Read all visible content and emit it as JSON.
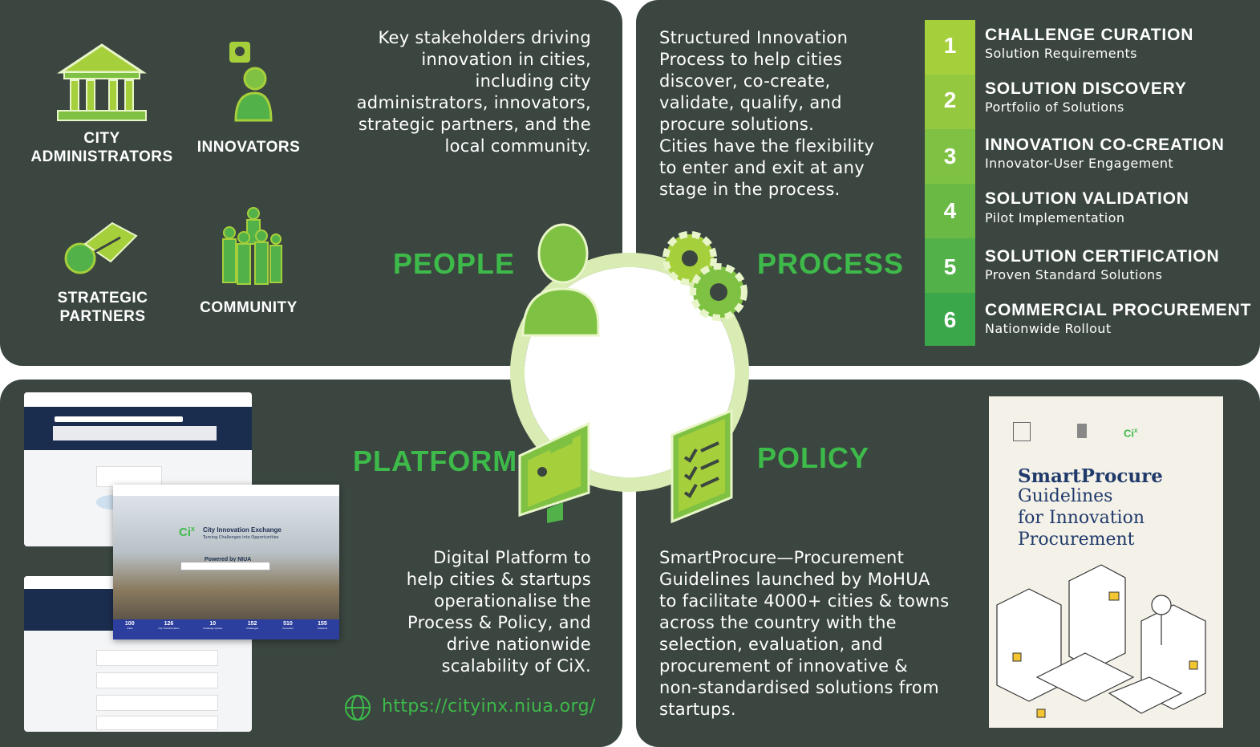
{
  "people": {
    "pillar": "PEOPLE",
    "description": [
      "Key stakeholders driving",
      "innovation in cities,",
      "including city",
      "administrators, innovators,",
      "strategic partners, and the",
      "local community."
    ],
    "stakeholders": [
      {
        "label1": "CITY",
        "label2": "ADMINISTRATORS",
        "icon": "government-building-icon"
      },
      {
        "label1": "INNOVATORS",
        "label2": "",
        "icon": "innovator-icon"
      },
      {
        "label1": "STRATEGIC",
        "label2": "PARTNERS",
        "icon": "handshake-icon"
      },
      {
        "label1": "COMMUNITY",
        "label2": "",
        "icon": "community-icon"
      }
    ]
  },
  "process": {
    "pillar": "PROCESS",
    "description": [
      "Structured Innovation",
      "Process to help cities",
      "discover, co-create,",
      "validate, qualify, and",
      "procure solutions.",
      "Cities have the flexibility",
      "to enter and exit at any",
      "stage in the process."
    ],
    "steps": [
      {
        "num": "1",
        "title": "CHALLENGE CURATION",
        "sub": "Solution Requirements",
        "color": "#a6cf3c"
      },
      {
        "num": "2",
        "title": "SOLUTION DISCOVERY",
        "sub": "Portfolio of Solutions",
        "color": "#94c83f"
      },
      {
        "num": "3",
        "title": "INNOVATION CO-CREATION",
        "sub": "Innovator-User Engagement",
        "color": "#7fc142"
      },
      {
        "num": "4",
        "title": "SOLUTION VALIDATION",
        "sub": "Pilot Implementation",
        "color": "#6ab945"
      },
      {
        "num": "5",
        "title": "SOLUTION CERTIFICATION",
        "sub": "Proven Standard Solutions",
        "color": "#52b148"
      },
      {
        "num": "6",
        "title": "COMMERCIAL PROCUREMENT",
        "sub": "Nationwide Rollout",
        "color": "#3aa84a"
      }
    ]
  },
  "platform": {
    "pillar": "PLATFORM",
    "description": [
      "Digital Platform to",
      "help cities & startups",
      "operationalise the",
      "Process & Policy, and",
      "drive nationwide",
      "scalability of CiX."
    ],
    "url": "https://cityinx.niua.org/",
    "screenshot": {
      "brand": "City Innovation Exchange",
      "tagline": "Turning Challenges into Opportunities",
      "powered": "Powered by NIUA",
      "stats": [
        {
          "value": "100",
          "label": "Cities"
        },
        {
          "value": "126",
          "label": "City Transformation"
        },
        {
          "value": "10",
          "label": "Challenge Quotes"
        },
        {
          "value": "152",
          "label": "Challenges"
        },
        {
          "value": "510",
          "label": "Innovators"
        },
        {
          "value": "155",
          "label": "Solutions"
        }
      ]
    }
  },
  "policy": {
    "pillar": "POLICY",
    "description": [
      "SmartProcure—Procurement",
      "Guidelines launched by MoHUA",
      "to facilitate 4000+ cities & towns",
      "across the country with the",
      "selection, evaluation, and",
      "procurement of innovative &",
      "non-standardised solutions from",
      "startups."
    ],
    "cover": {
      "title1": "SmartProcure",
      "title2": "Guidelines",
      "title3": "for Innovation",
      "title4": "Procurement"
    }
  },
  "colors": {
    "panel": "#3b4640",
    "accent": "#3dba49",
    "lime": "#a6cf3c",
    "ring": "#d9ecb4"
  }
}
